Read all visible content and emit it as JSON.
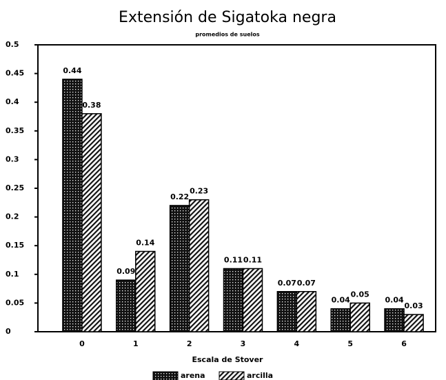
{
  "chart_data": {
    "type": "bar",
    "title": "Extensión de Sigatoka negra",
    "subtitle": "promedios de suelos",
    "x_label": "Escala de Stover",
    "categories": [
      "0",
      "1",
      "2",
      "3",
      "4",
      "5",
      "6"
    ],
    "series": [
      {
        "name": "arena",
        "color": "#222222",
        "values": [
          0.44,
          0.09,
          0.22,
          0.11,
          0.07,
          0.04,
          0.04
        ]
      },
      {
        "name": "arcilla",
        "color": "#444444",
        "values": [
          0.38,
          0.14,
          0.23,
          0.11,
          0.07,
          0.05,
          0.03
        ]
      }
    ],
    "ylim": [
      0,
      0.5
    ],
    "yticks": [
      0,
      0.05,
      0.1,
      0.15,
      0.2,
      0.25,
      0.3,
      0.35,
      0.4,
      0.45,
      0.5
    ],
    "grid": false,
    "legend": "bottom"
  }
}
